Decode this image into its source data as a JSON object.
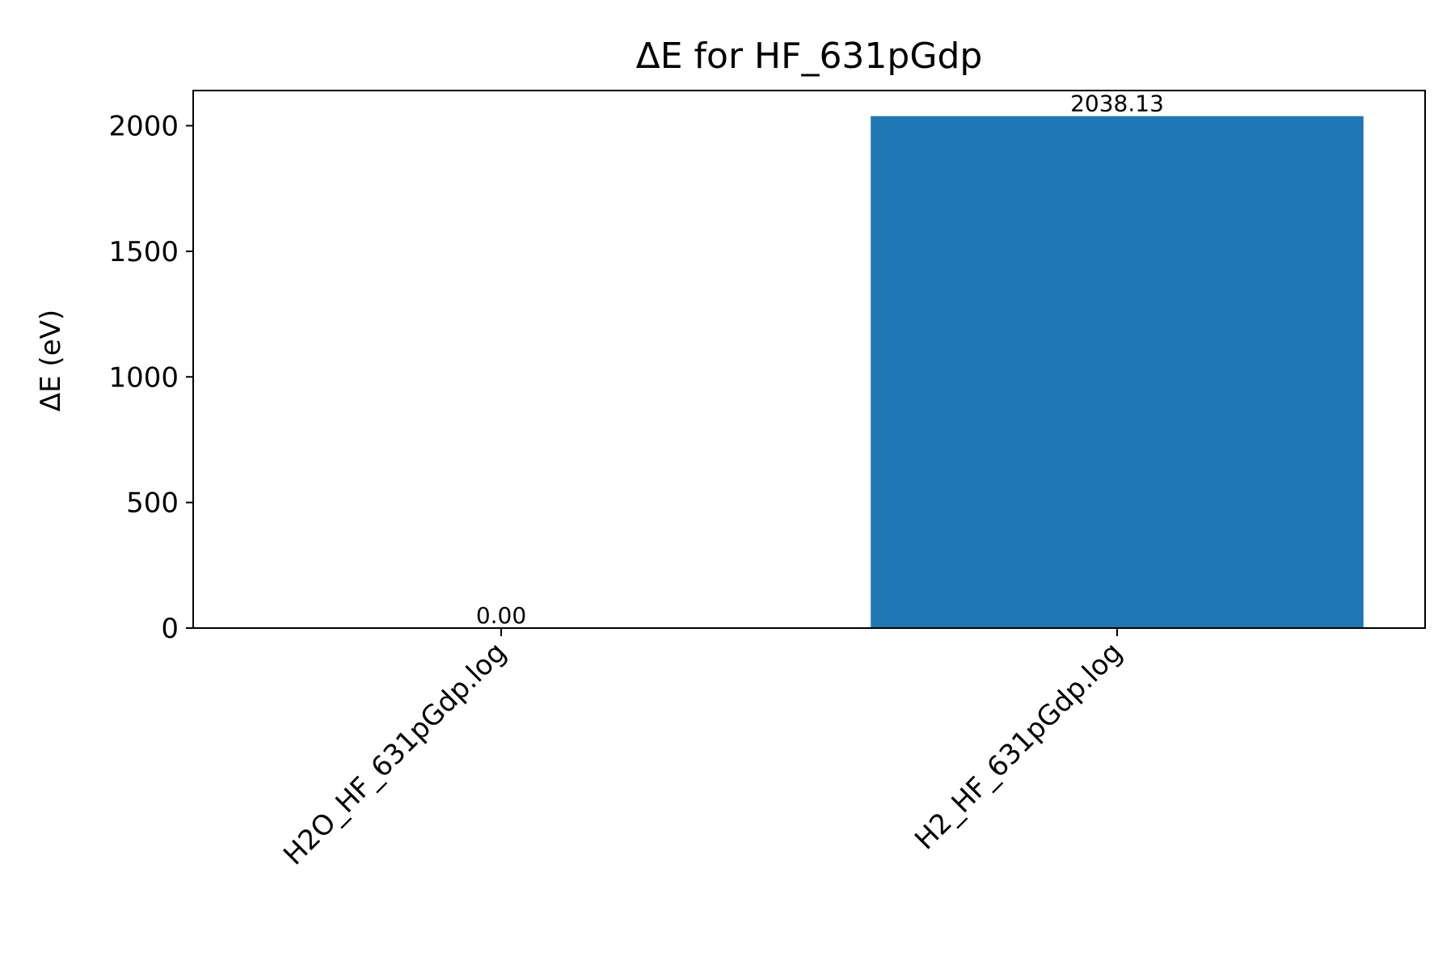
{
  "chart_data": {
    "type": "bar",
    "title": "ΔE for HF_631pGdp",
    "xlabel": "",
    "ylabel": "ΔE (eV)",
    "categories": [
      "H2O_HF_631pGdp.log",
      "H2_HF_631pGdp.log"
    ],
    "values": [
      0.0,
      2038.13
    ],
    "value_labels": [
      "0.00",
      "2038.13"
    ],
    "ylim": [
      0,
      2140
    ],
    "yticks": [
      0,
      500,
      1000,
      1500,
      2000
    ],
    "ytick_labels": [
      "0",
      "500",
      "1000",
      "1500",
      "2000"
    ],
    "bar_color": "#1f77b4",
    "grid": false,
    "legend": "none"
  }
}
